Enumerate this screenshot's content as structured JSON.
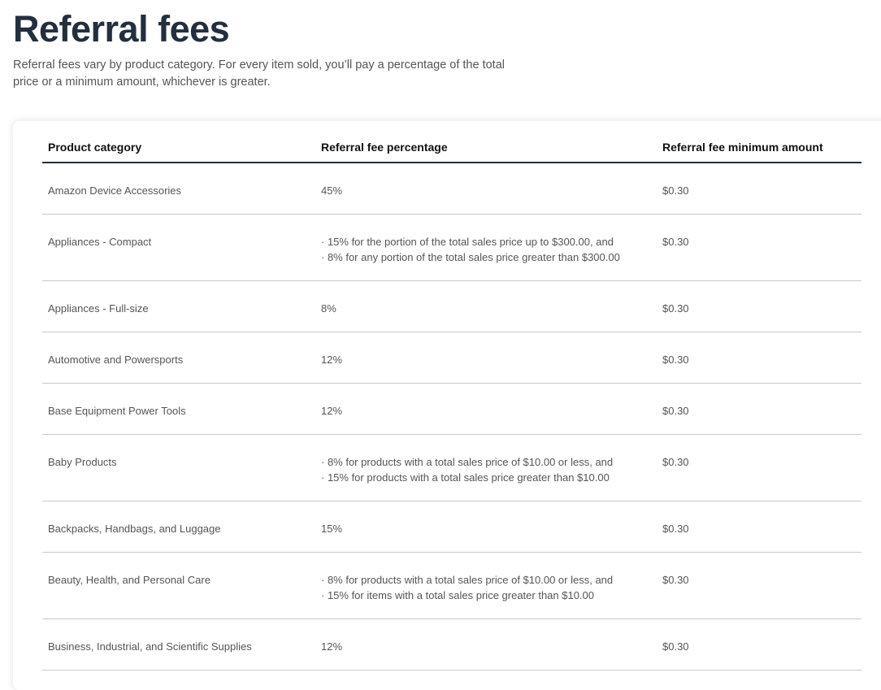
{
  "header": {
    "title": "Referral fees",
    "description": "Referral fees vary by product category. For every item sold, you’ll pay a percentage of the total price or a minimum amount, whichever is greater."
  },
  "table": {
    "columns": [
      "Product category",
      "Referral fee percentage",
      "Referral fee minimum amount"
    ],
    "rows": [
      [
        "Amazon Device Accessories",
        [
          "45%"
        ],
        "$0.30"
      ],
      [
        "Appliances - Compact",
        [
          "· 15% for the portion of the total sales price up to $300.00, and",
          "· 8% for any portion of the total sales price greater than $300.00"
        ],
        "$0.30"
      ],
      [
        "Appliances - Full-size",
        [
          "8%"
        ],
        "$0.30"
      ],
      [
        "Automotive and Powersports",
        [
          "12%"
        ],
        "$0.30"
      ],
      [
        "Base Equipment Power Tools",
        [
          "12%"
        ],
        "$0.30"
      ],
      [
        "Baby Products",
        [
          "· 8% for products with a total sales price of $10.00 or less, and",
          "· 15% for products with a total sales price greater than $10.00"
        ],
        "$0.30"
      ],
      [
        "Backpacks, Handbags, and Luggage",
        [
          "15%"
        ],
        "$0.30"
      ],
      [
        "Beauty, Health, and Personal Care",
        [
          "· 8% for products with a total sales price of $10.00 or less, and",
          "· 15% for items with a total sales price greater than $10.00"
        ],
        "$0.30"
      ],
      [
        "Business, Industrial, and Scientific Supplies",
        [
          "12%"
        ],
        "$0.30"
      ]
    ]
  }
}
